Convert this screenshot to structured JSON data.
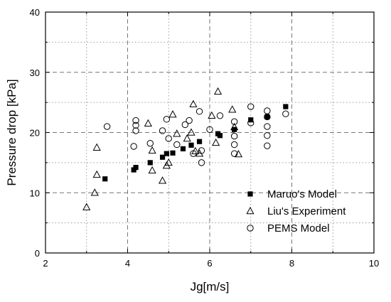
{
  "chart_data": {
    "type": "scatter",
    "xlabel": "Jg[m/s]",
    "ylabel": "Pressure drop [kPa]",
    "xlim": [
      2,
      10
    ],
    "ylim": [
      0,
      40
    ],
    "x_ticks": [
      "2",
      "4",
      "6",
      "8",
      "10"
    ],
    "y_ticks": [
      "0",
      "10",
      "20",
      "30",
      "40"
    ],
    "grid": true,
    "legend_position": "bottom-right",
    "series": [
      {
        "name": "Maruo's Model",
        "marker": "filled-square",
        "x": [
          3.45,
          4.15,
          4.2,
          4.55,
          4.85,
          4.95,
          5.1,
          5.35,
          5.55,
          5.75,
          6.2,
          6.25,
          6.6,
          7.0,
          7.4,
          7.85
        ],
        "y": [
          12.3,
          13.8,
          14.2,
          15.0,
          15.9,
          16.5,
          16.6,
          17.3,
          17.9,
          18.5,
          19.8,
          19.5,
          20.5,
          22.1,
          22.6,
          24.3
        ]
      },
      {
        "name": "Liu's Experiment",
        "marker": "open-triangle",
        "x": [
          3.0,
          3.2,
          3.25,
          3.25,
          4.5,
          4.6,
          4.6,
          4.85,
          4.95,
          5.0,
          5.1,
          5.2,
          5.45,
          5.55,
          5.6,
          5.65,
          5.75,
          6.05,
          6.15,
          6.2,
          6.55,
          6.6,
          6.7
        ],
        "y": [
          7.6,
          10.0,
          13.0,
          17.5,
          21.5,
          17.0,
          13.7,
          12.0,
          14.5,
          15.0,
          23.0,
          19.8,
          19.0,
          20.0,
          24.7,
          16.9,
          16.5,
          22.8,
          18.3,
          26.8,
          23.8,
          20.9,
          16.4
        ]
      },
      {
        "name": "PEMS Model",
        "marker": "open-circle",
        "x": [
          3.5,
          4.15,
          4.2,
          4.2,
          4.2,
          4.55,
          4.85,
          4.95,
          5.0,
          5.2,
          5.4,
          5.5,
          5.6,
          5.75,
          5.8,
          5.8,
          6.0,
          6.25,
          6.6,
          6.6,
          6.6,
          6.6,
          7.0,
          7.0,
          7.4,
          7.4,
          7.4,
          7.4,
          7.4,
          7.85
        ],
        "y": [
          21.0,
          17.7,
          20.3,
          21.2,
          22.0,
          18.2,
          20.3,
          22.2,
          19.0,
          18.0,
          21.3,
          22.0,
          16.5,
          23.5,
          15.0,
          17.0,
          20.5,
          22.8,
          21.8,
          19.4,
          18.0,
          16.5,
          24.3,
          21.6,
          23.6,
          22.6,
          21.0,
          19.5,
          17.8,
          23.1
        ]
      }
    ]
  }
}
